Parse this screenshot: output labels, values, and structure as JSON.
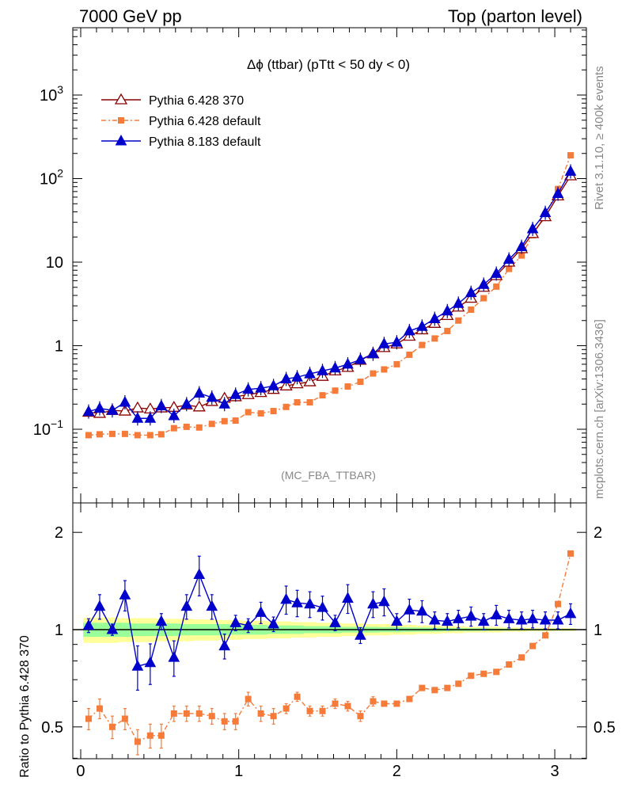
{
  "header": {
    "left": "7000 GeV pp",
    "right": "Top (parton level)"
  },
  "side_labels": {
    "rivet": "Rivet 3.1.10, ≥ 400k events",
    "mcplots": "mcplots.cern.ch [arXiv:1306.3436]"
  },
  "chart_data": [
    {
      "type": "line",
      "title": "Δϕ (ttbar) (pTtt < 50 dy < 0)",
      "watermark": "(MC_FBA_TTBAR)",
      "xlabel": "",
      "ylabel": "",
      "xlim": [
        -0.05,
        3.2
      ],
      "ylim": [
        0.01,
        7000
      ],
      "yscale": "log",
      "y_tick_labels": [
        {
          "value": 0.1,
          "base": "10",
          "exp": "−1"
        },
        {
          "value": 1,
          "base": "1",
          "exp": ""
        },
        {
          "value": 10,
          "base": "10",
          "exp": ""
        },
        {
          "value": 100,
          "base": "10",
          "exp": "2"
        },
        {
          "value": 1000,
          "base": "10",
          "exp": "3"
        }
      ],
      "legend_position": "top-left",
      "x": [
        0.05,
        0.12,
        0.2,
        0.28,
        0.36,
        0.44,
        0.51,
        0.59,
        0.67,
        0.75,
        0.83,
        0.91,
        0.98,
        1.06,
        1.14,
        1.22,
        1.3,
        1.37,
        1.45,
        1.53,
        1.61,
        1.69,
        1.77,
        1.85,
        1.92,
        2.0,
        2.08,
        2.16,
        2.24,
        2.32,
        2.39,
        2.47,
        2.55,
        2.63,
        2.71,
        2.79,
        2.86,
        2.94,
        3.02,
        3.1
      ],
      "series": [
        {
          "name": "Pythia 6.428 370",
          "color": "#8b0000",
          "marker": "open-triangle",
          "values": [
            0.16,
            0.155,
            0.168,
            0.165,
            0.18,
            0.175,
            0.18,
            0.183,
            0.195,
            0.185,
            0.215,
            0.235,
            0.245,
            0.26,
            0.275,
            0.3,
            0.33,
            0.35,
            0.37,
            0.43,
            0.5,
            0.55,
            0.67,
            0.8,
            0.95,
            1.05,
            1.3,
            1.55,
            1.85,
            2.3,
            2.9,
            3.7,
            5.0,
            6.9,
            10.0,
            14.5,
            22.0,
            35.0,
            62.0,
            108.0
          ]
        },
        {
          "name": "Pythia 6.428 default",
          "color": "#f47b3a",
          "marker": "filled-square",
          "values": [
            0.085,
            0.087,
            0.088,
            0.088,
            0.085,
            0.085,
            0.087,
            0.103,
            0.107,
            0.105,
            0.116,
            0.125,
            0.127,
            0.16,
            0.155,
            0.165,
            0.185,
            0.21,
            0.21,
            0.255,
            0.29,
            0.325,
            0.37,
            0.465,
            0.52,
            0.6,
            0.78,
            1.02,
            1.22,
            1.5,
            2.0,
            2.7,
            3.7,
            5.1,
            8.3,
            12.0,
            21.0,
            37.0,
            75.0,
            190.0
          ]
        },
        {
          "name": "Pythia 8.183 default",
          "color": "#0000cc",
          "marker": "filled-triangle",
          "values": [
            0.163,
            0.178,
            0.168,
            0.21,
            0.135,
            0.135,
            0.19,
            0.145,
            0.2,
            0.27,
            0.24,
            0.2,
            0.26,
            0.3,
            0.31,
            0.33,
            0.4,
            0.42,
            0.46,
            0.5,
            0.54,
            0.6,
            0.68,
            0.8,
            1.05,
            1.1,
            1.5,
            1.7,
            2.1,
            2.6,
            3.2,
            4.3,
            5.4,
            7.3,
            10.8,
            15.3,
            25.0,
            39.0,
            66.0,
            122.0
          ]
        }
      ]
    },
    {
      "type": "line",
      "title": "",
      "xlabel": "",
      "ylabel": "Ratio to Pythia 6.428 370",
      "xlim": [
        -0.05,
        3.2
      ],
      "ylim": [
        0.35,
        2.3
      ],
      "yscale": "log",
      "x_ticks": [
        0,
        1,
        2,
        3
      ],
      "x_tick_labels": [
        "0",
        "1",
        "2",
        "3"
      ],
      "y_ticks": [
        0.5,
        1,
        2
      ],
      "y_tick_labels": [
        "0.5",
        "1",
        "2"
      ],
      "reference_line": 1,
      "x": [
        0.05,
        0.12,
        0.2,
        0.28,
        0.36,
        0.44,
        0.51,
        0.59,
        0.67,
        0.75,
        0.83,
        0.91,
        0.98,
        1.06,
        1.14,
        1.22,
        1.3,
        1.37,
        1.45,
        1.53,
        1.61,
        1.69,
        1.77,
        1.85,
        1.92,
        2.0,
        2.08,
        2.16,
        2.24,
        2.32,
        2.39,
        2.47,
        2.55,
        2.63,
        2.71,
        2.79,
        2.86,
        2.94,
        3.02,
        3.1
      ],
      "series": [
        {
          "name": "Pythia 6.428 default",
          "color": "#f47b3a",
          "marker": "filled-square",
          "values": [
            0.53,
            0.57,
            0.5,
            0.53,
            0.45,
            0.47,
            0.47,
            0.55,
            0.55,
            0.55,
            0.54,
            0.52,
            0.52,
            0.61,
            0.55,
            0.54,
            0.57,
            0.62,
            0.56,
            0.56,
            0.59,
            0.58,
            0.54,
            0.6,
            0.59,
            0.59,
            0.61,
            0.66,
            0.65,
            0.66,
            0.68,
            0.72,
            0.73,
            0.74,
            0.78,
            0.82,
            0.89,
            0.96,
            1.2,
            1.72
          ],
          "errors": [
            0.04,
            0.04,
            0.04,
            0.04,
            0.04,
            0.04,
            0.04,
            0.03,
            0.03,
            0.03,
            0.03,
            0.03,
            0.03,
            0.03,
            0.03,
            0.03,
            0.02,
            0.02,
            0.02,
            0.02,
            0.02,
            0.02,
            0.02,
            0.02,
            0.01,
            0.01,
            0.01,
            0.01,
            0.01,
            0.01,
            0.01,
            0.01,
            0.01,
            0.01,
            0.01,
            0.01,
            0.01,
            0.01,
            0.01,
            0.01
          ]
        },
        {
          "name": "Pythia 8.183 default",
          "color": "#0000cc",
          "marker": "filled-triangle",
          "values": [
            1.03,
            1.18,
            1.0,
            1.28,
            0.77,
            0.79,
            1.06,
            0.82,
            1.18,
            1.48,
            1.18,
            0.89,
            1.05,
            1.03,
            1.13,
            1.04,
            1.24,
            1.21,
            1.2,
            1.17,
            1.05,
            1.25,
            0.96,
            1.2,
            1.22,
            1.06,
            1.15,
            1.14,
            1.07,
            1.06,
            1.08,
            1.1,
            1.06,
            1.11,
            1.08,
            1.07,
            1.08,
            1.07,
            1.07,
            1.12
          ]
        }
      ],
      "bands": [
        {
          "name": "outer",
          "color": "#ffff99",
          "halfwidth": [
            0.09,
            0.09,
            0.09,
            0.085,
            0.085,
            0.085,
            0.08,
            0.08,
            0.08,
            0.075,
            0.075,
            0.07,
            0.07,
            0.065,
            0.065,
            0.06,
            0.06,
            0.055,
            0.055,
            0.05,
            0.05,
            0.045,
            0.045,
            0.04,
            0.04,
            0.035,
            0.035,
            0.03,
            0.03,
            0.025,
            0.025,
            0.02,
            0.02,
            0.02,
            0.015,
            0.015,
            0.012,
            0.012,
            0.01,
            0.01
          ]
        },
        {
          "name": "inner",
          "color": "#99ff99",
          "halfwidth": [
            0.05,
            0.05,
            0.05,
            0.05,
            0.045,
            0.045,
            0.045,
            0.045,
            0.04,
            0.04,
            0.04,
            0.04,
            0.035,
            0.035,
            0.035,
            0.03,
            0.03,
            0.03,
            0.025,
            0.025,
            0.025,
            0.02,
            0.02,
            0.02,
            0.018,
            0.018,
            0.016,
            0.015,
            0.014,
            0.012,
            0.01,
            0.01,
            0.009,
            0.008,
            0.007,
            0.006,
            0.005,
            0.005,
            0.005,
            0.005
          ]
        }
      ]
    }
  ]
}
